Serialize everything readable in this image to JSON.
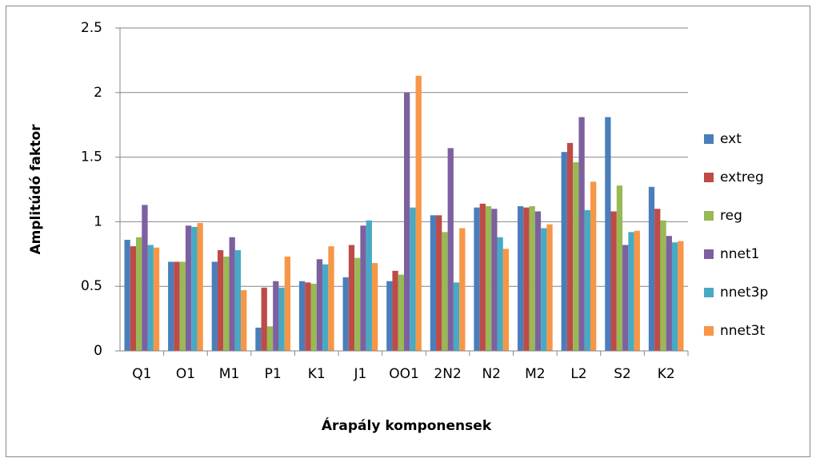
{
  "chart_data": {
    "type": "bar",
    "y_label": "Amplitúdó faktor",
    "x_label": "Árapály komponensek",
    "categories": [
      "Q1",
      "O1",
      "M1",
      "P1",
      "K1",
      "J1",
      "OO1",
      "2N2",
      "N2",
      "M2",
      "L2",
      "S2",
      "K2"
    ],
    "series": [
      {
        "name": "ext",
        "color": "#4a7ebb",
        "values": [
          0.86,
          0.69,
          0.69,
          0.18,
          0.54,
          0.57,
          0.54,
          1.05,
          1.11,
          1.12,
          1.54,
          1.81,
          1.27
        ]
      },
      {
        "name": "extreg",
        "color": "#be4b48",
        "values": [
          0.81,
          0.69,
          0.78,
          0.49,
          0.53,
          0.82,
          0.62,
          1.05,
          1.14,
          1.11,
          1.61,
          1.08,
          1.1
        ]
      },
      {
        "name": "reg",
        "color": "#98b954",
        "values": [
          0.88,
          0.69,
          0.73,
          0.19,
          0.52,
          0.72,
          0.59,
          0.92,
          1.12,
          1.12,
          1.46,
          1.28,
          1.01
        ]
      },
      {
        "name": "nnet1",
        "color": "#7d60a0",
        "values": [
          1.13,
          0.97,
          0.88,
          0.54,
          0.71,
          0.97,
          2.0,
          1.57,
          1.1,
          1.08,
          1.81,
          0.82,
          0.89
        ]
      },
      {
        "name": "nnet3p",
        "color": "#46aac5",
        "values": [
          0.82,
          0.96,
          0.78,
          0.49,
          0.67,
          1.01,
          1.11,
          0.53,
          0.88,
          0.95,
          1.09,
          0.92,
          0.84
        ]
      },
      {
        "name": "nnet3t",
        "color": "#f79646",
        "values": [
          0.8,
          0.99,
          0.47,
          0.73,
          0.81,
          0.68,
          2.13,
          0.95,
          0.79,
          0.98,
          1.31,
          0.93,
          0.85
        ]
      }
    ],
    "ylim": [
      0,
      2.5
    ],
    "yticks": [
      0,
      0.5,
      1,
      1.5,
      2,
      2.5
    ],
    "grid": true,
    "legend": "right"
  }
}
